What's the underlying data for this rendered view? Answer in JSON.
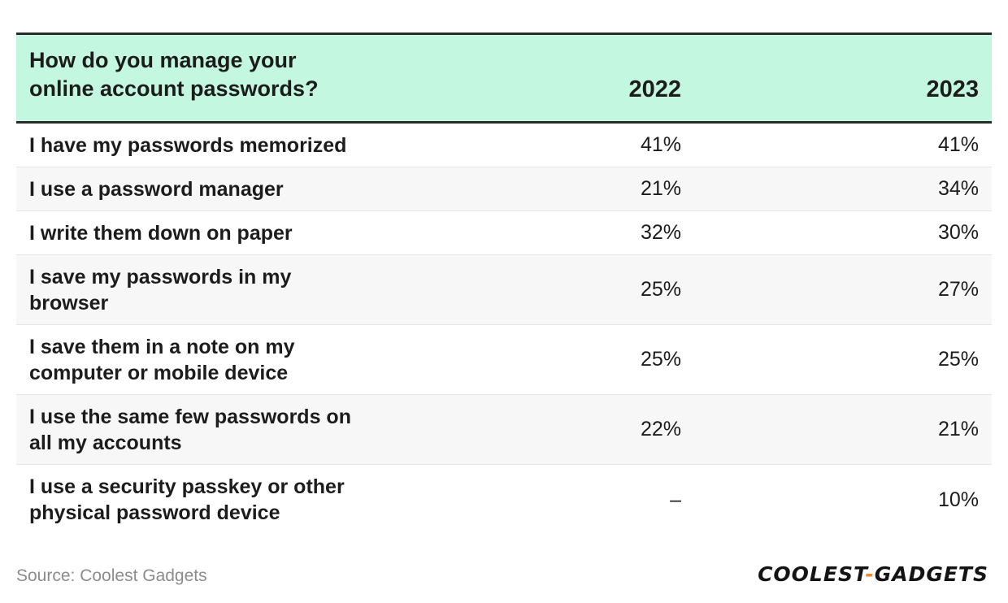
{
  "chart_data": {
    "type": "table",
    "columns": [
      "How do you manage your online account passwords?",
      "2022",
      "2023"
    ],
    "header": {
      "question_line1": "How do you manage your",
      "question_line2": "online account passwords?",
      "year1": "2022",
      "year2": "2023"
    },
    "rows": [
      {
        "label_line1": "I have my passwords memorized",
        "label_line2": "",
        "v2022": "41%",
        "v2023": "41%"
      },
      {
        "label_line1": "I use a password manager",
        "label_line2": "",
        "v2022": "21%",
        "v2023": "34%"
      },
      {
        "label_line1": "I write them down on paper",
        "label_line2": "",
        "v2022": "32%",
        "v2023": "30%"
      },
      {
        "label_line1": "I save my passwords in my",
        "label_line2": "browser",
        "v2022": "25%",
        "v2023": "27%"
      },
      {
        "label_line1": "I save them in a note on my",
        "label_line2": "computer or mobile device",
        "v2022": "25%",
        "v2023": "25%"
      },
      {
        "label_line1": "I use the same few passwords on",
        "label_line2": "all my accounts",
        "v2022": "22%",
        "v2023": "21%"
      },
      {
        "label_line1": "I use a security passkey or other",
        "label_line2": "physical password device",
        "v2022": "–",
        "v2023": "10%"
      }
    ],
    "values_2022": [
      41,
      21,
      32,
      25,
      25,
      22,
      null
    ],
    "values_2023": [
      41,
      34,
      30,
      27,
      25,
      21,
      10
    ]
  },
  "footer": {
    "source": "Source: Coolest Gadgets",
    "logo_part1": "COOLEST",
    "logo_dash": "-",
    "logo_part2": "GADGETS"
  },
  "colors": {
    "header_bg": "#c4f7df",
    "rule": "#2b2b2b",
    "row_alt": "#f7f7f7",
    "logo_dash": "#f08a24"
  }
}
